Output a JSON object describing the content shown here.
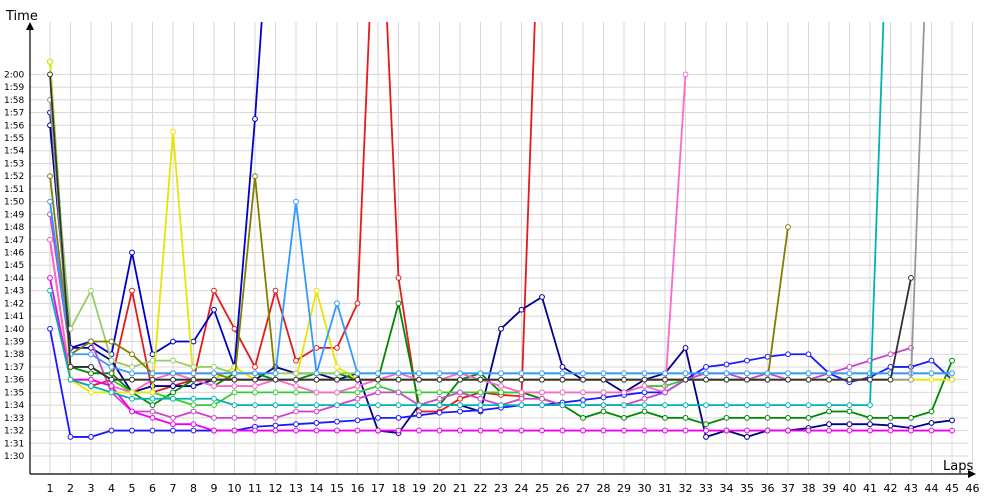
{
  "chart_data": {
    "type": "line",
    "xlabel": "Laps",
    "ylabel": "Time",
    "x_range": [
      1,
      46
    ],
    "y_range_seconds": [
      86,
      124
    ],
    "y_ticks": [
      "1:30",
      "1:31",
      "1:32",
      "1:33",
      "1:34",
      "1:35",
      "1:36",
      "1:37",
      "1:38",
      "1:39",
      "1:40",
      "1:41",
      "1:42",
      "1:43",
      "1:44",
      "1:45",
      "1:46",
      "1:47",
      "1:48",
      "1:49",
      "1:50",
      "1:51",
      "1:52",
      "1:53",
      "1:54",
      "1:55",
      "1:56",
      "1:57",
      "1:58",
      "1:59",
      "2:00"
    ],
    "x_ticks": [
      1,
      2,
      3,
      4,
      5,
      6,
      7,
      8,
      9,
      10,
      11,
      12,
      13,
      14,
      15,
      16,
      17,
      18,
      19,
      20,
      21,
      22,
      23,
      24,
      25,
      26,
      27,
      28,
      29,
      30,
      31,
      32,
      33,
      34,
      35,
      36,
      37,
      38,
      39,
      40,
      41,
      42,
      43,
      44,
      45,
      46
    ],
    "grid": true,
    "legend": "none",
    "series": [
      {
        "color": "#e41a1c",
        "values": [
          107,
          96,
          95.5,
          96,
          103,
          95,
          95.5,
          96,
          103,
          100,
          97,
          103,
          97.5,
          98.5,
          98.5,
          102,
          140,
          104,
          93.5,
          93.5,
          94.5,
          95,
          94.8,
          94.7,
          140
        ]
      },
      {
        "color": "#0000cc",
        "values": [
          117,
          98.5,
          99,
          98,
          106,
          98,
          99,
          99,
          101.5,
          97,
          116.5,
          140,
          null,
          null,
          null,
          null,
          null,
          null,
          null,
          null,
          null,
          null,
          null,
          null,
          null,
          null,
          null,
          null,
          null,
          null,
          null,
          null,
          null,
          null,
          null,
          null,
          null,
          null,
          null,
          null,
          null,
          null,
          null,
          null,
          null,
          null
        ]
      },
      {
        "color": "#00008b",
        "values": [
          116,
          98.5,
          98.5,
          97.5,
          95,
          95.5,
          95.5,
          95.5,
          96,
          96,
          96,
          97,
          96.5,
          96.5,
          96,
          96.5,
          92,
          91.8,
          94,
          94,
          94,
          93.5,
          100,
          101.5,
          102.5,
          97,
          96,
          96,
          95,
          96,
          96.5,
          98.5,
          91.5,
          92,
          91.5,
          92,
          92,
          92.2,
          92.5,
          92.5,
          92.5,
          92.4,
          92.2,
          92.6,
          92.8
        ]
      },
      {
        "color": "#1a1aff",
        "values": [
          100,
          91.5,
          91.5,
          92,
          92,
          92,
          92,
          92,
          92,
          92,
          92.3,
          92.4,
          92.5,
          92.6,
          92.7,
          92.8,
          93,
          93,
          93.2,
          93.4,
          93.5,
          93.6,
          93.8,
          94,
          94,
          94.2,
          94.4,
          94.6,
          94.8,
          95,
          95,
          96,
          97,
          97.2,
          97.5,
          97.8,
          98,
          98,
          96.5,
          95.8,
          96.2,
          97,
          97,
          97.5,
          96
        ]
      },
      {
        "color": "#008800",
        "values": [
          121,
          97,
          96.5,
          96.5,
          95,
          94,
          95,
          96,
          95.5,
          96.5,
          96.5,
          96,
          96,
          96.5,
          96.5,
          96,
          96,
          102,
          94,
          94,
          96,
          96.5,
          95,
          95,
          94.5,
          94,
          93,
          93.5,
          93,
          93.5,
          93,
          93,
          92.5,
          93,
          93,
          93,
          93,
          93,
          93.5,
          93.5,
          93,
          93,
          93,
          93.5,
          97.5
        ]
      },
      {
        "color": "#33cc33",
        "values": [
          121,
          97,
          97,
          96,
          95,
          95,
          94.5,
          94,
          94,
          95,
          95,
          95,
          95,
          95,
          95,
          95,
          95.5,
          95,
          95,
          95,
          95,
          95,
          95,
          95,
          95,
          95,
          95,
          95,
          95,
          95.5,
          95.5,
          96,
          96,
          96,
          96,
          96,
          null,
          null,
          null,
          null,
          null,
          null,
          null,
          null,
          null
        ]
      },
      {
        "color": "#ff66cc",
        "values": [
          107,
          96,
          96,
          95.5,
          95,
          96,
          96.5,
          96,
          95.5,
          95.5,
          95.5,
          96,
          95.5,
          95,
          95,
          95.5,
          96,
          96.5,
          96,
          96,
          96.5,
          96,
          95.5,
          95,
          95,
          95,
          95,
          95,
          95,
          95.5,
          95,
          120,
          null,
          null,
          null,
          null,
          null,
          null,
          null,
          null,
          null,
          null,
          null,
          null,
          null
        ]
      },
      {
        "color": "#cc44cc",
        "values": [
          109,
          98,
          99,
          95,
          93.5,
          93.5,
          93,
          93.5,
          93,
          93,
          93,
          93,
          93.5,
          93.5,
          94,
          94.5,
          95,
          95,
          94,
          94.5,
          95,
          94.5,
          94,
          94.5,
          94.5,
          94,
          94,
          94,
          94,
          94.5,
          95,
          96,
          96.5,
          96.5,
          96,
          96.5,
          96,
          96,
          96.5,
          97,
          97.5,
          98,
          98.5,
          null,
          null
        ]
      },
      {
        "color": "#ee00ee",
        "values": [
          104,
          96,
          96,
          95.5,
          93.5,
          93,
          92.5,
          92.5,
          92,
          92,
          92,
          92,
          92,
          92,
          92,
          92,
          92,
          92,
          92,
          92,
          92,
          92,
          92,
          92,
          92,
          92,
          92,
          92,
          92,
          92,
          92,
          92,
          92,
          92,
          92,
          92,
          92,
          92,
          92,
          92,
          92,
          92,
          92,
          92,
          92
        ]
      },
      {
        "color": "#e6e600",
        "values": [
          121,
          96,
          95,
          95,
          95,
          95,
          115.5,
          96,
          96,
          97,
          96,
          96,
          96,
          103,
          97,
          96,
          96,
          96,
          96,
          96,
          96,
          96,
          96,
          96,
          96,
          96,
          96,
          96,
          96,
          96,
          96,
          96,
          96,
          96,
          96,
          96,
          96,
          96,
          96,
          96,
          96,
          96,
          96,
          96,
          96
        ]
      },
      {
        "color": "#99cc66",
        "values": [
          118,
          100,
          103,
          97.5,
          97,
          97.5,
          97.5,
          97,
          97,
          96.5,
          96.5,
          96.5,
          96.5,
          96.5,
          96.5,
          96.5,
          96.5,
          96.5,
          96.5,
          96.5,
          96.5,
          96.5,
          96.5,
          96.5,
          96.5,
          96.5,
          96.5,
          96.5,
          96.5,
          96.5,
          96.5,
          96.5,
          96.5,
          96.5,
          96.5,
          96.5,
          96.5,
          96.5,
          96.5,
          96.5,
          96.5,
          96.5,
          96.5,
          96.5,
          96.5
        ]
      },
      {
        "color": "#808000",
        "values": [
          112,
          98,
          99,
          99,
          98,
          96.5,
          96.5,
          96.5,
          96.5,
          96,
          112,
          96,
          96,
          96,
          96,
          96,
          96,
          96,
          96,
          96,
          96,
          96,
          96,
          96,
          96,
          96,
          96,
          96,
          96,
          96,
          96,
          96,
          96,
          96,
          96,
          96,
          108,
          null,
          null,
          null,
          null,
          null,
          null,
          null,
          null
        ]
      },
      {
        "color": "#3399ff",
        "values": [
          110,
          98,
          98,
          97,
          96.5,
          96.5,
          96.5,
          96.5,
          96.5,
          96.5,
          96.5,
          96.5,
          110,
          96.5,
          102,
          96.5,
          96.5,
          96.5,
          96.5,
          96.5,
          96.5,
          96.5,
          96.5,
          96.5,
          96.5,
          96.5,
          96.5,
          96.5,
          96.5,
          96.5,
          96.5,
          96.5,
          96.5,
          96.5,
          96.5,
          96.5,
          96.5,
          96.5,
          96.5,
          96.5,
          96.5,
          96.5,
          96.5,
          96.5,
          96.5
        ]
      },
      {
        "color": "#00b3b3",
        "values": [
          103,
          96,
          95.5,
          95,
          94.5,
          94.5,
          94.5,
          94.5,
          94.5,
          94,
          94,
          94,
          94,
          94,
          94,
          94,
          94,
          94,
          94,
          94,
          94,
          94,
          94,
          94,
          94,
          94,
          94,
          94,
          94,
          94,
          94,
          94,
          94,
          94,
          94,
          94,
          94,
          94,
          94,
          94,
          94,
          140,
          null,
          null,
          null,
          null
        ]
      },
      {
        "color": "#999999",
        "values": [
          118,
          97,
          97,
          96,
          96,
          96,
          96,
          96,
          96,
          96,
          96,
          96,
          96,
          96,
          96,
          96,
          96,
          96,
          96,
          96,
          96,
          96,
          96,
          96,
          96,
          96,
          96,
          96,
          96,
          96,
          96,
          96,
          96,
          96,
          96,
          96,
          96,
          96,
          96,
          96,
          96,
          96,
          96,
          140,
          null,
          null
        ]
      },
      {
        "color": "#333333",
        "values": [
          120,
          97,
          97,
          96,
          96,
          96,
          96,
          96,
          96,
          96,
          96,
          96,
          96,
          96,
          96,
          96,
          96,
          96,
          96,
          96,
          96,
          96,
          96,
          96,
          96,
          96,
          96,
          96,
          96,
          96,
          96,
          96,
          96,
          96,
          96,
          96,
          96,
          96,
          96,
          96,
          96,
          96,
          104,
          null,
          null,
          null
        ]
      }
    ]
  }
}
